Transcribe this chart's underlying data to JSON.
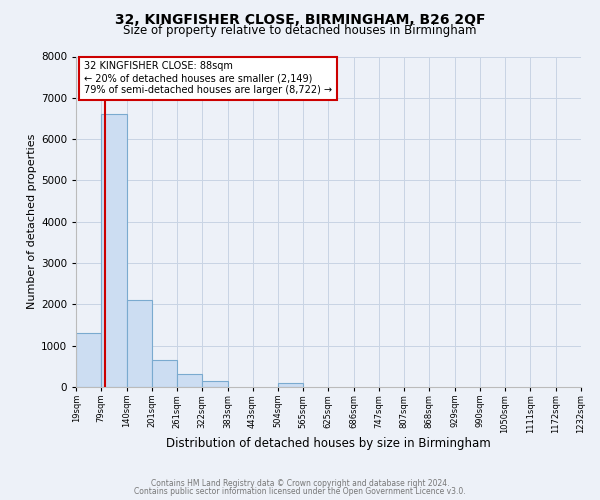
{
  "title": "32, KINGFISHER CLOSE, BIRMINGHAM, B26 2QF",
  "subtitle": "Size of property relative to detached houses in Birmingham",
  "xlabel": "Distribution of detached houses by size in Birmingham",
  "ylabel": "Number of detached properties",
  "bar_color": "#ccddf2",
  "bar_edge_color": "#7aaacf",
  "bin_edges": [
    19,
    79,
    140,
    201,
    261,
    322,
    383,
    443,
    504,
    565,
    625,
    686,
    747,
    807,
    868,
    929,
    990,
    1050,
    1111,
    1172,
    1232
  ],
  "bin_labels": [
    "19sqm",
    "79sqm",
    "140sqm",
    "201sqm",
    "261sqm",
    "322sqm",
    "383sqm",
    "443sqm",
    "504sqm",
    "565sqm",
    "625sqm",
    "686sqm",
    "747sqm",
    "807sqm",
    "868sqm",
    "929sqm",
    "990sqm",
    "1050sqm",
    "1111sqm",
    "1172sqm",
    "1232sqm"
  ],
  "counts": [
    1300,
    6600,
    2100,
    650,
    300,
    150,
    0,
    0,
    95,
    0,
    0,
    0,
    0,
    0,
    0,
    0,
    0,
    0,
    0,
    0
  ],
  "property_line_x": 88,
  "property_line_color": "#cc0000",
  "annotation_title": "32 KINGFISHER CLOSE: 88sqm",
  "annotation_line1": "← 20% of detached houses are smaller (2,149)",
  "annotation_line2": "79% of semi-detached houses are larger (8,722) →",
  "annotation_box_facecolor": "#ffffff",
  "annotation_box_edgecolor": "#cc0000",
  "ylim": [
    0,
    8000
  ],
  "yticks": [
    0,
    1000,
    2000,
    3000,
    4000,
    5000,
    6000,
    7000,
    8000
  ],
  "grid_color": "#c8d4e4",
  "background_color": "#edf1f8",
  "footer_line1": "Contains HM Land Registry data © Crown copyright and database right 2024.",
  "footer_line2": "Contains public sector information licensed under the Open Government Licence v3.0."
}
